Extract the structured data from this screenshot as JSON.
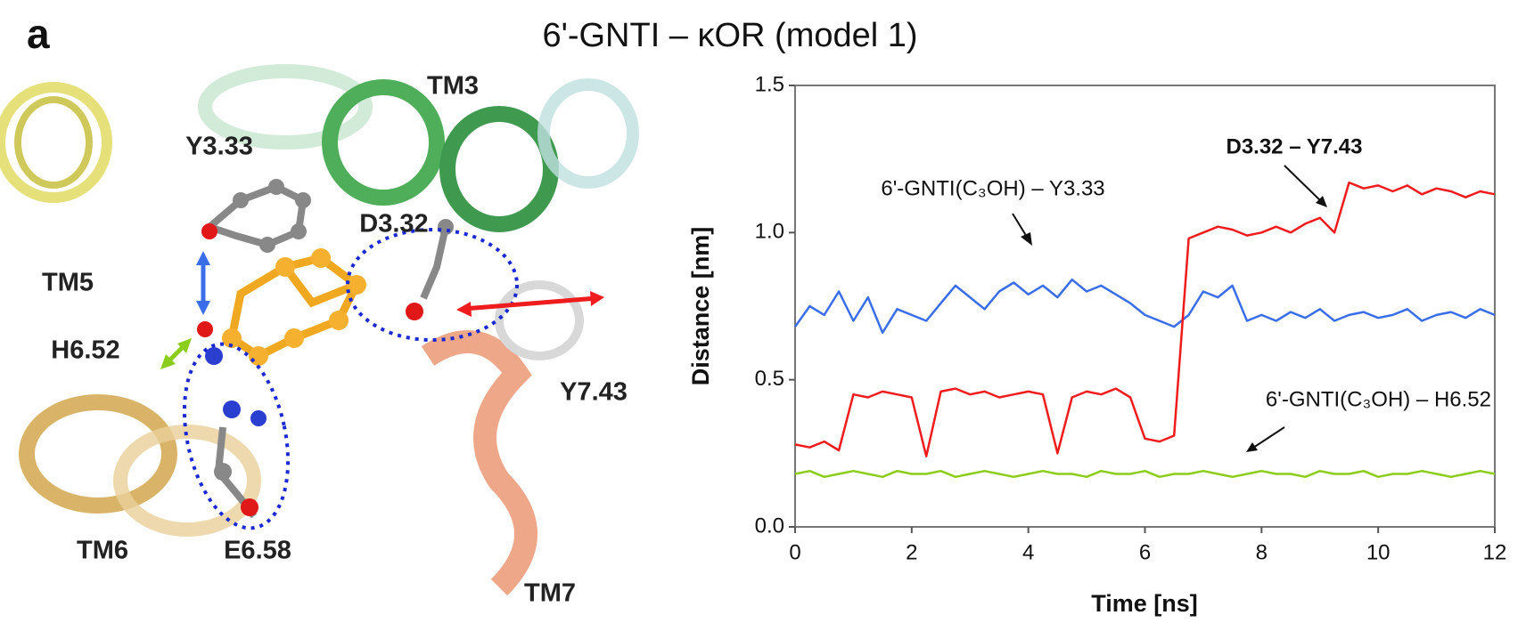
{
  "panel_label": "a",
  "structure_labels": [
    "TM3",
    "Y3.33",
    "D3.32",
    "TM5",
    "H6.52",
    "Y7.43",
    "TM6",
    "E6.58",
    "TM7"
  ],
  "chart_data": {
    "type": "line",
    "title": "6'-GNTI – κOR (model 1)",
    "x_label": "Time [ns]",
    "y_label": "Distance [nm]",
    "x": [
      0,
      0.25,
      0.5,
      0.75,
      1,
      1.25,
      1.5,
      1.75,
      2,
      2.25,
      2.5,
      2.75,
      3,
      3.25,
      3.5,
      3.75,
      4,
      4.25,
      4.5,
      4.75,
      5,
      5.25,
      5.5,
      5.75,
      6,
      6.25,
      6.5,
      6.75,
      7,
      7.25,
      7.5,
      7.75,
      8,
      8.25,
      8.5,
      8.75,
      9,
      9.25,
      9.5,
      9.75,
      10,
      10.25,
      10.5,
      10.75,
      11,
      11.25,
      11.5,
      11.75,
      12
    ],
    "series": [
      {
        "name": "6'-GNTI(C₃OH) – H6.52",
        "color": "#8ccc1a",
        "values": [
          0.18,
          0.19,
          0.17,
          0.18,
          0.19,
          0.18,
          0.17,
          0.19,
          0.18,
          0.18,
          0.19,
          0.17,
          0.18,
          0.19,
          0.18,
          0.17,
          0.18,
          0.19,
          0.18,
          0.18,
          0.17,
          0.19,
          0.18,
          0.18,
          0.19,
          0.17,
          0.18,
          0.18,
          0.19,
          0.18,
          0.17,
          0.18,
          0.19,
          0.18,
          0.18,
          0.17,
          0.19,
          0.18,
          0.18,
          0.19,
          0.17,
          0.18,
          0.18,
          0.19,
          0.18,
          0.17,
          0.18,
          0.19,
          0.18
        ]
      },
      {
        "name": "6'-GNTI(C₃OH) – Y3.33",
        "color": "#3a6ee8",
        "values": [
          0.68,
          0.75,
          0.72,
          0.8,
          0.7,
          0.78,
          0.66,
          0.74,
          0.72,
          0.7,
          0.76,
          0.82,
          0.78,
          0.74,
          0.8,
          0.83,
          0.79,
          0.82,
          0.78,
          0.84,
          0.8,
          0.82,
          0.79,
          0.76,
          0.72,
          0.7,
          0.68,
          0.72,
          0.8,
          0.78,
          0.82,
          0.7,
          0.72,
          0.7,
          0.73,
          0.71,
          0.74,
          0.7,
          0.72,
          0.73,
          0.71,
          0.72,
          0.74,
          0.7,
          0.72,
          0.73,
          0.71,
          0.74,
          0.72
        ]
      },
      {
        "name": "D3.32 – Y7.43",
        "color": "#ee1c1c",
        "values": [
          0.28,
          0.27,
          0.29,
          0.26,
          0.45,
          0.44,
          0.46,
          0.45,
          0.44,
          0.24,
          0.46,
          0.47,
          0.45,
          0.46,
          0.44,
          0.45,
          0.46,
          0.45,
          0.25,
          0.44,
          0.46,
          0.45,
          0.47,
          0.44,
          0.3,
          0.29,
          0.31,
          0.98,
          1.0,
          1.02,
          1.01,
          0.99,
          1.0,
          1.02,
          1.0,
          1.03,
          1.05,
          1.0,
          1.17,
          1.15,
          1.16,
          1.14,
          1.16,
          1.13,
          1.15,
          1.14,
          1.12,
          1.14,
          1.13
        ]
      }
    ],
    "xlim": [
      0,
      12
    ],
    "ylim": [
      0,
      1.5
    ],
    "xticks": [
      0,
      2,
      4,
      6,
      8,
      10,
      12
    ],
    "yticks": [
      {
        "value": 0,
        "label": "0.0"
      },
      0.5,
      {
        "value": 1,
        "label": "1.0"
      },
      1.5
    ]
  }
}
